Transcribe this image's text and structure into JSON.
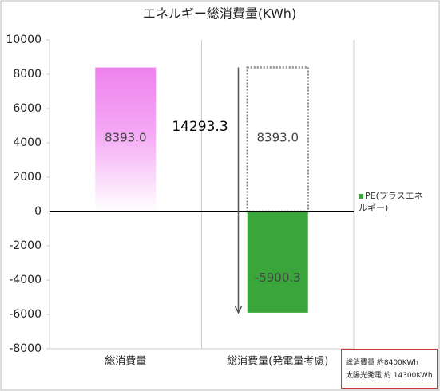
{
  "chart_data": {
    "type": "bar",
    "title": "エネルギー総消費量(KWh)",
    "categories": [
      "総消費量",
      "総消費量(発電量考慮)"
    ],
    "series": [
      {
        "values": [
          8393.0,
          null
        ],
        "value_labels": [
          "8393.0",
          null
        ],
        "color": "#ee82ee",
        "style": "gradient"
      },
      {
        "values": [
          null,
          8393.0
        ],
        "value_labels": [
          null,
          "8393.0"
        ],
        "color": "#888888",
        "style": "dotted"
      },
      {
        "name": "PE(プラスエネルギー)",
        "values": [
          null,
          -5900.3
        ],
        "color": "#3aa53a",
        "style": "solid"
      }
    ],
    "difference": {
      "value": 14293.3
    },
    "ylim": [
      -8000,
      10000
    ],
    "yticks": [
      -8000,
      -6000,
      -4000,
      -2000,
      0,
      2000,
      4000,
      6000,
      8000,
      10000
    ],
    "grid": true,
    "legend": "right"
  },
  "note": {
    "lines": [
      "総消費量 約8400KWh",
      "太陽光発電 約 14300KWh"
    ]
  }
}
